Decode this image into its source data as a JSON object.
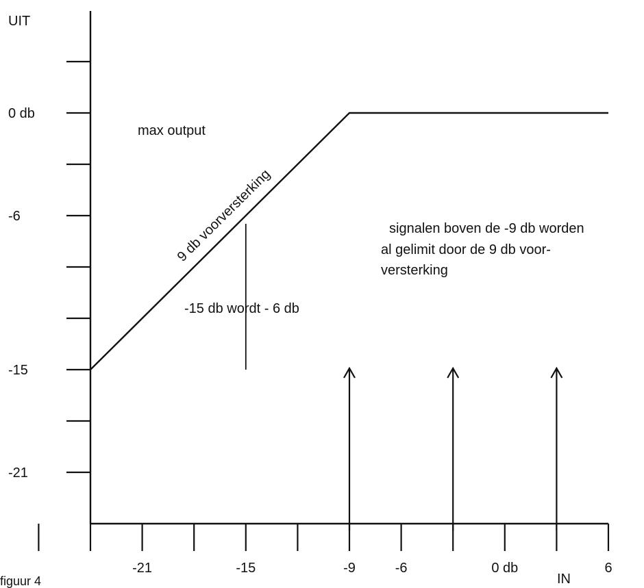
{
  "chart_data": {
    "type": "line",
    "caption": "figuur 4",
    "xlabel": "IN",
    "ylabel": "UIT",
    "x_ticks": [
      -27,
      -24,
      -21,
      -18,
      -15,
      -12,
      -9,
      -6,
      -3,
      0,
      3,
      6
    ],
    "x_tick_labels": [
      {
        "value": -21,
        "label": "-21"
      },
      {
        "value": -15,
        "label": "-15"
      },
      {
        "value": -9,
        "label": "-9"
      },
      {
        "value": -6,
        "label": "-6"
      },
      {
        "value": 0,
        "label": "0 db"
      },
      {
        "value": 6,
        "label": "6"
      }
    ],
    "y_ticks": [
      3,
      0,
      -3,
      -6,
      -9,
      -12,
      -15,
      -18,
      -21
    ],
    "y_tick_labels": [
      {
        "value": 0,
        "label": "0 db"
      },
      {
        "value": -6,
        "label": "-6"
      },
      {
        "value": -15,
        "label": "-15"
      },
      {
        "value": -21,
        "label": "-21"
      }
    ],
    "xlim": [
      -27,
      6
    ],
    "ylim": [
      -24,
      6
    ],
    "series": [
      {
        "x": [
          -24,
          -9,
          6
        ],
        "y": [
          -15,
          0,
          0
        ],
        "label": "9 db voorversterking"
      }
    ],
    "annotations": {
      "max_output": "max output",
      "example": "-15 db wordt - 6 db",
      "limited_line1": "signalen boven de -9 db worden",
      "limited_line2": "al gelimit door de 9 db voor-",
      "limited_line3": "versterking"
    },
    "example_marker": {
      "x": -15,
      "y_from": -15,
      "y_to": -6
    },
    "arrows": [
      {
        "x": -9,
        "y_from": -24,
        "y_to": -15
      },
      {
        "x": -3,
        "y_from": -24,
        "y_to": -15
      },
      {
        "x": 3,
        "y_from": -24,
        "y_to": -15
      }
    ]
  }
}
